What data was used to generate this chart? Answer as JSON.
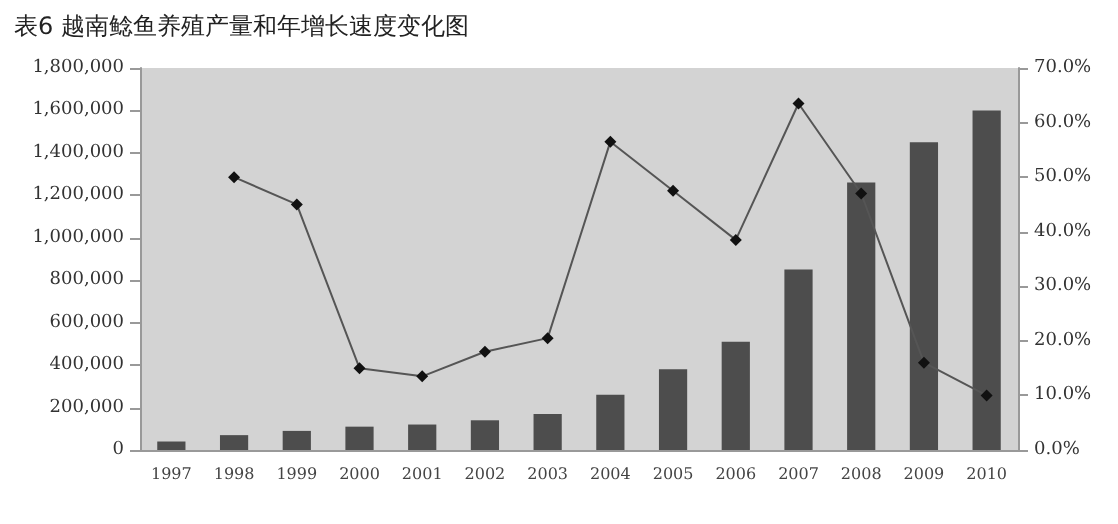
{
  "chart_data": {
    "type": "bar",
    "title": "表6 越南鲶鱼养殖产量和年增长速度变化图",
    "categories": [
      "1997",
      "1998",
      "1999",
      "2000",
      "2001",
      "2002",
      "2003",
      "2004",
      "2005",
      "2006",
      "2007",
      "2008",
      "2009",
      "2010"
    ],
    "series": [
      {
        "color": "#4d4d4d",
        "values": [
          40000,
          70000,
          90000,
          110000,
          120000,
          140000,
          170000,
          260000,
          380000,
          510000,
          850000,
          1260000,
          1450000,
          1600000
        ]
      },
      {
        "type": "line",
        "axis": "y2",
        "color": "#555555",
        "marker": "diamond",
        "values": [
          null,
          50,
          45,
          15,
          13.5,
          18,
          20.5,
          56.5,
          47.5,
          38.5,
          63.5,
          47,
          16,
          10
        ]
      }
    ],
    "ylim": [
      0,
      1800000
    ],
    "yticks": [
      {
        "value": 0,
        "label": "0"
      },
      {
        "value": 200000,
        "label": "200,000"
      },
      {
        "value": 400000,
        "label": "400,000"
      },
      {
        "value": 600000,
        "label": "600,000"
      },
      {
        "value": 800000,
        "label": "800,000"
      },
      {
        "value": 1000000,
        "label": "1,000,000"
      },
      {
        "value": 1200000,
        "label": "1,200,000"
      },
      {
        "value": 1400000,
        "label": "1,400,000"
      },
      {
        "value": 1600000,
        "label": "1,600,000"
      },
      {
        "value": 1800000,
        "label": "1,800,000"
      }
    ],
    "y2lim": [
      0,
      70
    ],
    "y2ticks": [
      {
        "value": 0,
        "label": "0.0%"
      },
      {
        "value": 10,
        "label": "10.0%"
      },
      {
        "value": 20,
        "label": "20.0%"
      },
      {
        "value": 30,
        "label": "30.0%"
      },
      {
        "value": 40,
        "label": "40.0%"
      },
      {
        "value": 50,
        "label": "50.0%"
      },
      {
        "value": 60,
        "label": "60.0%"
      },
      {
        "value": 70,
        "label": "70.0%"
      }
    ],
    "grid": false
  }
}
